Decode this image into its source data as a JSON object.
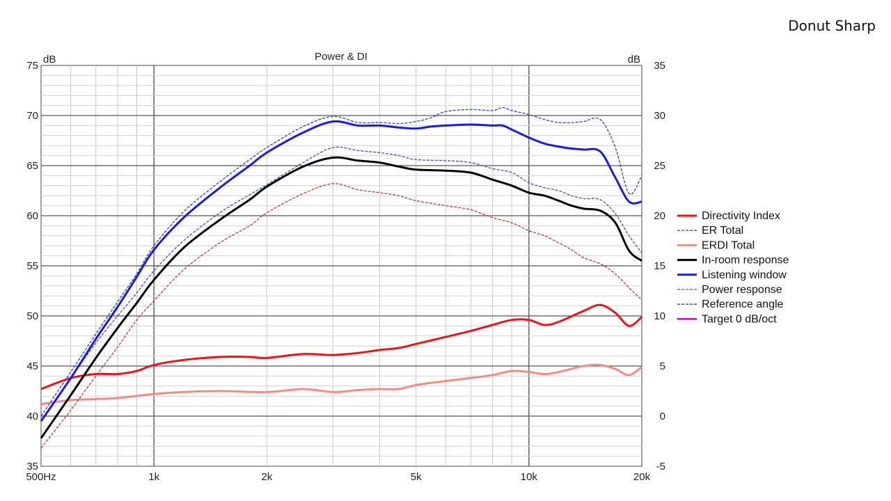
{
  "page": {
    "title": "Donut Sharp"
  },
  "chart_data": {
    "type": "line",
    "title": "Power & DI",
    "left_unit": "dB",
    "right_unit": "dB",
    "x_scale": "log",
    "xlim": [
      500,
      20000
    ],
    "ylim": [
      35,
      75
    ],
    "y2lim": [
      -5,
      35
    ],
    "x_ticks": [
      {
        "value": 500,
        "label": "500Hz"
      },
      {
        "value": 1000,
        "label": "1k"
      },
      {
        "value": 2000,
        "label": "2k"
      },
      {
        "value": 5000,
        "label": "5k"
      },
      {
        "value": 10000,
        "label": "10k"
      },
      {
        "value": 20000,
        "label": "20k"
      }
    ],
    "y_ticks": [
      "35",
      "40",
      "45",
      "50",
      "55",
      "60",
      "65",
      "70",
      "75"
    ],
    "y2_ticks": [
      "-5",
      "0",
      "5",
      "10",
      "15",
      "20",
      "25",
      "30",
      "35"
    ],
    "grid": true,
    "legend_position": "right",
    "series": [
      {
        "name": "Directivity Index",
        "axis": "right",
        "color": "#e8141b",
        "width": 3,
        "dash": false,
        "x": [
          500,
          600,
          700,
          800,
          900,
          1000,
          1200,
          1500,
          1800,
          2000,
          2500,
          3000,
          3500,
          4000,
          4500,
          5000,
          6000,
          7000,
          8000,
          9000,
          10000,
          11000,
          12000,
          14000,
          15500,
          17000,
          18500,
          20000
        ],
        "y": [
          2.7,
          3.8,
          4.2,
          4.2,
          4.5,
          5.1,
          5.6,
          5.9,
          5.9,
          5.8,
          6.2,
          6.1,
          6.3,
          6.6,
          6.8,
          7.2,
          7.9,
          8.5,
          9.1,
          9.6,
          9.6,
          9.1,
          9.4,
          10.5,
          11.1,
          10.3,
          9.0,
          9.9
        ]
      },
      {
        "name": "ER Total",
        "axis": "left",
        "color": "#3a4fd0",
        "width": 1.3,
        "dash": true,
        "x": [
          500,
          600,
          700,
          800,
          900,
          1000,
          1200,
          1500,
          1800,
          2000,
          2500,
          3000,
          3500,
          4000,
          4500,
          5000,
          6000,
          7000,
          8000,
          9000,
          10000,
          11000,
          12000,
          13000,
          14000,
          15500,
          17000,
          18500,
          20000
        ],
        "y": [
          39.6,
          43.8,
          47.3,
          50.0,
          52.3,
          54.5,
          57.5,
          60.3,
          62.1,
          63.1,
          65.3,
          66.8,
          66.5,
          66.3,
          66.0,
          65.6,
          65.5,
          65.3,
          64.7,
          64.3,
          63.3,
          62.8,
          62.5,
          62.0,
          61.7,
          61.6,
          60.2,
          58.0,
          56.3
        ]
      },
      {
        "name": "ERDI Total",
        "axis": "right",
        "color": "#f28b82",
        "width": 3,
        "dash": false,
        "x": [
          500,
          600,
          700,
          800,
          1000,
          1200,
          1500,
          2000,
          2500,
          3000,
          3500,
          4000,
          4500,
          5000,
          6000,
          7000,
          8000,
          9000,
          10000,
          11000,
          12000,
          14000,
          15500,
          17000,
          18500,
          20000
        ],
        "y": [
          1.2,
          1.6,
          1.7,
          1.8,
          2.2,
          2.4,
          2.5,
          2.4,
          2.7,
          2.4,
          2.6,
          2.7,
          2.7,
          3.1,
          3.5,
          3.8,
          4.1,
          4.5,
          4.4,
          4.2,
          4.4,
          5.0,
          5.1,
          4.7,
          4.1,
          4.9
        ]
      },
      {
        "name": "In-room response",
        "axis": "left",
        "color": "#000000",
        "width": 3,
        "dash": false,
        "x": [
          500,
          600,
          700,
          800,
          900,
          1000,
          1200,
          1500,
          1800,
          2000,
          2500,
          3000,
          3500,
          4000,
          4500,
          5000,
          6000,
          7000,
          8000,
          9000,
          10000,
          11000,
          12000,
          13000,
          14000,
          15500,
          17000,
          18500,
          20000
        ],
        "y": [
          37.8,
          42.1,
          45.8,
          48.8,
          51.3,
          53.6,
          56.8,
          59.6,
          61.6,
          62.9,
          64.9,
          65.8,
          65.5,
          65.3,
          64.9,
          64.6,
          64.5,
          64.3,
          63.6,
          63.0,
          62.3,
          62.0,
          61.5,
          61.0,
          60.7,
          60.5,
          59.3,
          56.5,
          55.5
        ]
      },
      {
        "name": "Listening window",
        "axis": "left",
        "color": "#1a1ae6",
        "width": 3,
        "dash": false,
        "x": [
          500,
          600,
          700,
          800,
          900,
          1000,
          1200,
          1500,
          1800,
          2000,
          2500,
          3000,
          3500,
          4000,
          4500,
          5000,
          5500,
          6000,
          7000,
          8000,
          8500,
          9000,
          10000,
          11000,
          12000,
          13000,
          14000,
          15500,
          17000,
          18500,
          20000
        ],
        "y": [
          39.5,
          43.8,
          47.7,
          50.9,
          53.9,
          56.6,
          59.8,
          62.8,
          65.0,
          66.3,
          68.3,
          69.4,
          69.0,
          69.0,
          68.8,
          68.7,
          68.9,
          69.0,
          69.1,
          69.0,
          69.0,
          68.6,
          67.8,
          67.2,
          66.9,
          66.7,
          66.6,
          66.4,
          63.8,
          61.4,
          61.4
        ]
      },
      {
        "name": "Power response",
        "axis": "left",
        "color": "#c0392b",
        "width": 1.3,
        "dash": true,
        "x": [
          500,
          600,
          700,
          800,
          900,
          1000,
          1200,
          1500,
          1800,
          2000,
          2500,
          3000,
          3500,
          4000,
          4500,
          5000,
          6000,
          7000,
          8000,
          9000,
          10000,
          11000,
          12000,
          13000,
          14000,
          15500,
          17000,
          18500,
          20000
        ],
        "y": [
          36.8,
          40.6,
          44.0,
          46.9,
          49.6,
          51.5,
          54.6,
          57.3,
          59.0,
          60.3,
          62.2,
          63.2,
          62.6,
          62.3,
          62.0,
          61.5,
          61.0,
          60.6,
          59.8,
          59.3,
          58.5,
          58.0,
          57.3,
          56.6,
          55.8,
          55.2,
          54.2,
          52.8,
          51.6
        ]
      },
      {
        "name": "Reference angle",
        "axis": "left",
        "color": "#2a3ad8",
        "width": 1.3,
        "dash": true,
        "x": [
          500,
          600,
          700,
          800,
          900,
          1000,
          1200,
          1500,
          1800,
          2000,
          2500,
          3000,
          3500,
          4000,
          4500,
          5000,
          5500,
          6000,
          7000,
          8000,
          8500,
          9000,
          10000,
          11000,
          12000,
          13000,
          14000,
          15500,
          17000,
          18500,
          20000
        ],
        "y": [
          40.0,
          44.4,
          48.2,
          51.4,
          54.2,
          57.0,
          60.4,
          63.4,
          65.6,
          66.8,
          68.9,
          69.9,
          69.3,
          69.3,
          69.2,
          69.4,
          69.8,
          70.4,
          70.6,
          70.5,
          70.8,
          70.5,
          70.1,
          69.6,
          69.3,
          69.3,
          69.4,
          69.6,
          66.8,
          62.2,
          64.0
        ]
      },
      {
        "name": "Target 0 dB/oct",
        "axis": "left",
        "color": "#ff00ff",
        "width": 3,
        "dash": false,
        "x": [],
        "y": []
      }
    ]
  }
}
